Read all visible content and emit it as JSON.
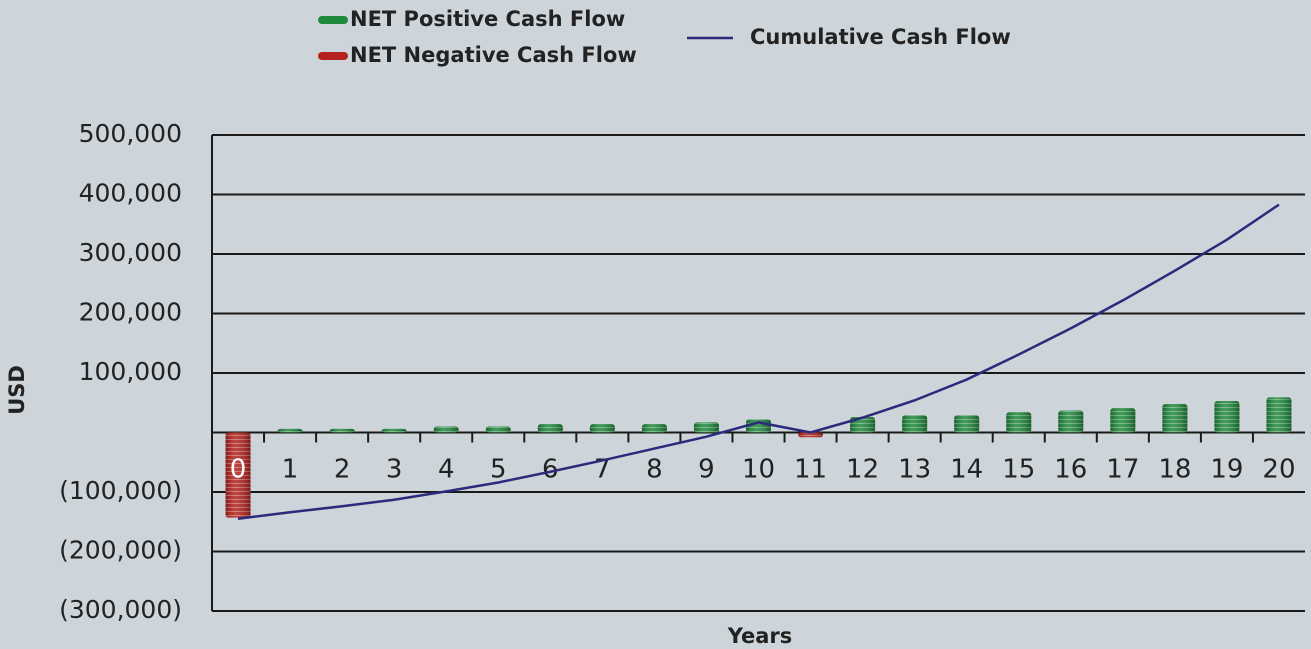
{
  "chart_data": {
    "type": "bar",
    "x_label": "Years",
    "y_label": "USD",
    "categories": [
      "0",
      "1",
      "2",
      "3",
      "4",
      "5",
      "6",
      "7",
      "8",
      "9",
      "10",
      "11",
      "12",
      "13",
      "14",
      "15",
      "16",
      "17",
      "18",
      "19",
      "20"
    ],
    "series": [
      {
        "name": "NET Positive Cash Flow",
        "color": "#1f8a3b",
        "values": [
          null,
          6000,
          6000,
          6000,
          10000,
          10000,
          14000,
          14000,
          14000,
          17000,
          22000,
          null,
          26000,
          29000,
          29000,
          34000,
          37000,
          41000,
          48000,
          53000,
          59000
        ]
      },
      {
        "name": "NET Negative Cash Flow",
        "color": "#b5221d",
        "values": [
          -143000,
          null,
          null,
          null,
          null,
          null,
          null,
          null,
          null,
          null,
          null,
          -8000,
          null,
          null,
          null,
          null,
          null,
          null,
          null,
          null,
          null
        ]
      },
      {
        "name": "Cumulative Cash Flow",
        "type": "line",
        "color": "#2c2a7c",
        "values": [
          -145000,
          -134000,
          -124000,
          -113000,
          -99000,
          -84000,
          -66000,
          -47000,
          -27000,
          -7000,
          17000,
          0,
          25000,
          54000,
          89000,
          131000,
          175000,
          222000,
          272000,
          324000,
          383000
        ]
      }
    ],
    "ylim": [
      -300000,
      500000
    ],
    "yticks": [
      {
        "value": -300000,
        "label": "(300,000)"
      },
      {
        "value": -200000,
        "label": "(200,000)"
      },
      {
        "value": -100000,
        "label": "(100,000)"
      },
      {
        "value": 100000,
        "label": "100,000"
      },
      {
        "value": 200000,
        "label": "200,000"
      },
      {
        "value": 300000,
        "label": "300,000"
      },
      {
        "value": 400000,
        "label": "400,000"
      },
      {
        "value": 500000,
        "label": "500,000"
      }
    ],
    "grid": true
  }
}
